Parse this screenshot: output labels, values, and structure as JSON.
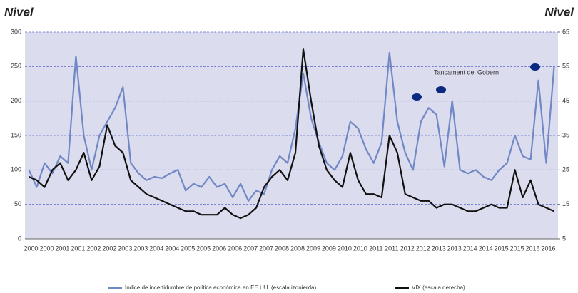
{
  "chart_data": {
    "type": "line",
    "y_label": "Nivel",
    "y2_label": "Nivel",
    "annotation": "Tancament del Gobern",
    "categories": [
      "2000",
      null,
      "2000",
      null,
      "2001",
      null,
      "2001",
      null,
      "2002",
      null,
      "2002",
      null,
      "2003",
      null,
      "2003",
      null,
      "2004",
      null,
      "2004",
      null,
      "2005",
      null,
      "2005",
      null,
      "2006",
      null,
      "2006",
      null,
      "2007",
      null,
      "2007",
      null,
      "2008",
      null,
      "2008",
      null,
      "2009",
      null,
      "2009",
      null,
      "2010",
      null,
      "2010",
      null,
      "2011",
      null,
      "2011",
      null,
      "2012",
      null,
      "2012",
      null,
      "2013",
      null,
      "2013",
      null,
      "2014",
      null,
      "2014",
      null,
      "2015",
      null,
      "2015",
      null,
      "2016",
      null,
      "2016",
      null
    ],
    "series": [
      {
        "name": "Índice de incertidumbre de política económica en EE.UU. (escala izquierda)",
        "color": "#7088c4",
        "values": [
          100,
          75,
          110,
          95,
          120,
          110,
          265,
          150,
          100,
          150,
          170,
          190,
          220,
          110,
          95,
          85,
          90,
          88,
          95,
          100,
          70,
          80,
          75,
          90,
          75,
          80,
          60,
          80,
          55,
          70,
          65,
          100,
          120,
          110,
          160,
          240,
          175,
          140,
          110,
          100,
          120,
          170,
          160,
          130,
          110,
          140,
          270,
          170,
          125,
          100,
          170,
          190,
          180,
          105,
          200,
          100,
          95,
          100,
          90,
          85,
          100,
          110,
          150,
          120,
          115,
          230,
          110,
          250
        ]
      },
      {
        "name": "VIX (escala derecha)",
        "color": "#111111",
        "axis": "y2",
        "values": [
          23,
          22,
          20,
          25,
          27,
          22,
          25,
          30,
          22,
          26,
          38,
          32,
          30,
          22,
          20,
          18,
          17,
          16,
          15,
          14,
          13,
          13,
          12,
          12,
          12,
          14,
          12,
          11,
          12,
          14,
          20,
          23,
          25,
          22,
          30,
          60,
          45,
          32,
          25,
          22,
          20,
          30,
          22,
          18,
          18,
          17,
          35,
          30,
          18,
          17,
          16,
          16,
          14,
          15,
          15,
          14,
          13,
          13,
          14,
          15,
          14,
          14,
          25,
          17,
          22,
          15,
          14,
          13
        ]
      }
    ],
    "ylim": [
      0,
      300
    ],
    "yticks": [
      0,
      50,
      100,
      150,
      200,
      250,
      300
    ],
    "y2lim": [
      5,
      65
    ],
    "y2ticks": [
      5,
      15,
      25,
      35,
      45,
      55,
      65
    ],
    "grid": true
  }
}
